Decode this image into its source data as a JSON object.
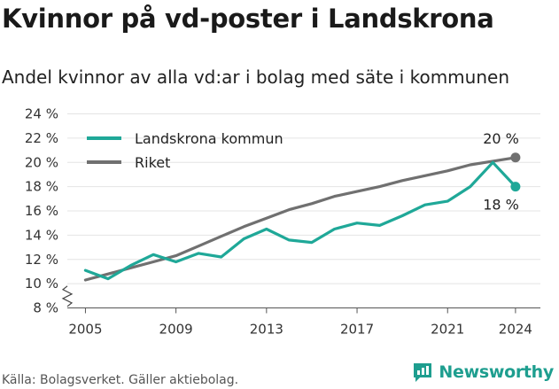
{
  "title": "Kvinnor på vd-poster i Landskrona",
  "subtitle": "Andel kvinnor av alla vd:ar i bolag med säte i kommunen",
  "source": "Källa: Bolagsverket. Gäller aktiebolag.",
  "brand": "Newsworthy",
  "colors": {
    "landskrona": "#1fa898",
    "riket": "#707070",
    "grid": "#e4e4e4",
    "brand": "#1e9e8f"
  },
  "chart_data": {
    "type": "line",
    "title": "Kvinnor på vd-poster i Landskrona",
    "subtitle": "Andel kvinnor av alla vd:ar i bolag med säte i kommunen",
    "xlabel": "",
    "ylabel": "",
    "x": [
      2005,
      2006,
      2007,
      2008,
      2009,
      2010,
      2011,
      2012,
      2013,
      2014,
      2015,
      2016,
      2017,
      2018,
      2019,
      2020,
      2021,
      2022,
      2023,
      2024
    ],
    "x_ticks": [
      "2005",
      "2009",
      "2013",
      "2017",
      "2021",
      "2024"
    ],
    "y_ticks": [
      "8 %",
      "10 %",
      "12 %",
      "14 %",
      "16 %",
      "18 %",
      "20 %",
      "22 %",
      "24 %"
    ],
    "ylim": [
      8,
      24
    ],
    "y_axis_break": true,
    "grid": true,
    "legend_position": "top-left",
    "series": [
      {
        "name": "Landskrona kommun",
        "color": "#1fa898",
        "values": [
          11.1,
          10.4,
          11.5,
          12.4,
          11.8,
          12.5,
          12.2,
          13.7,
          14.5,
          13.6,
          13.4,
          14.5,
          15.0,
          14.8,
          15.6,
          16.5,
          16.8,
          18.0,
          20.0,
          18.0
        ],
        "end_label": "18 %"
      },
      {
        "name": "Riket",
        "color": "#707070",
        "values": [
          10.3,
          10.8,
          11.3,
          11.8,
          12.3,
          13.1,
          13.9,
          14.7,
          15.4,
          16.1,
          16.6,
          17.2,
          17.6,
          18.0,
          18.5,
          18.9,
          19.3,
          19.8,
          20.1,
          20.4
        ],
        "end_label": "20 %"
      }
    ]
  }
}
